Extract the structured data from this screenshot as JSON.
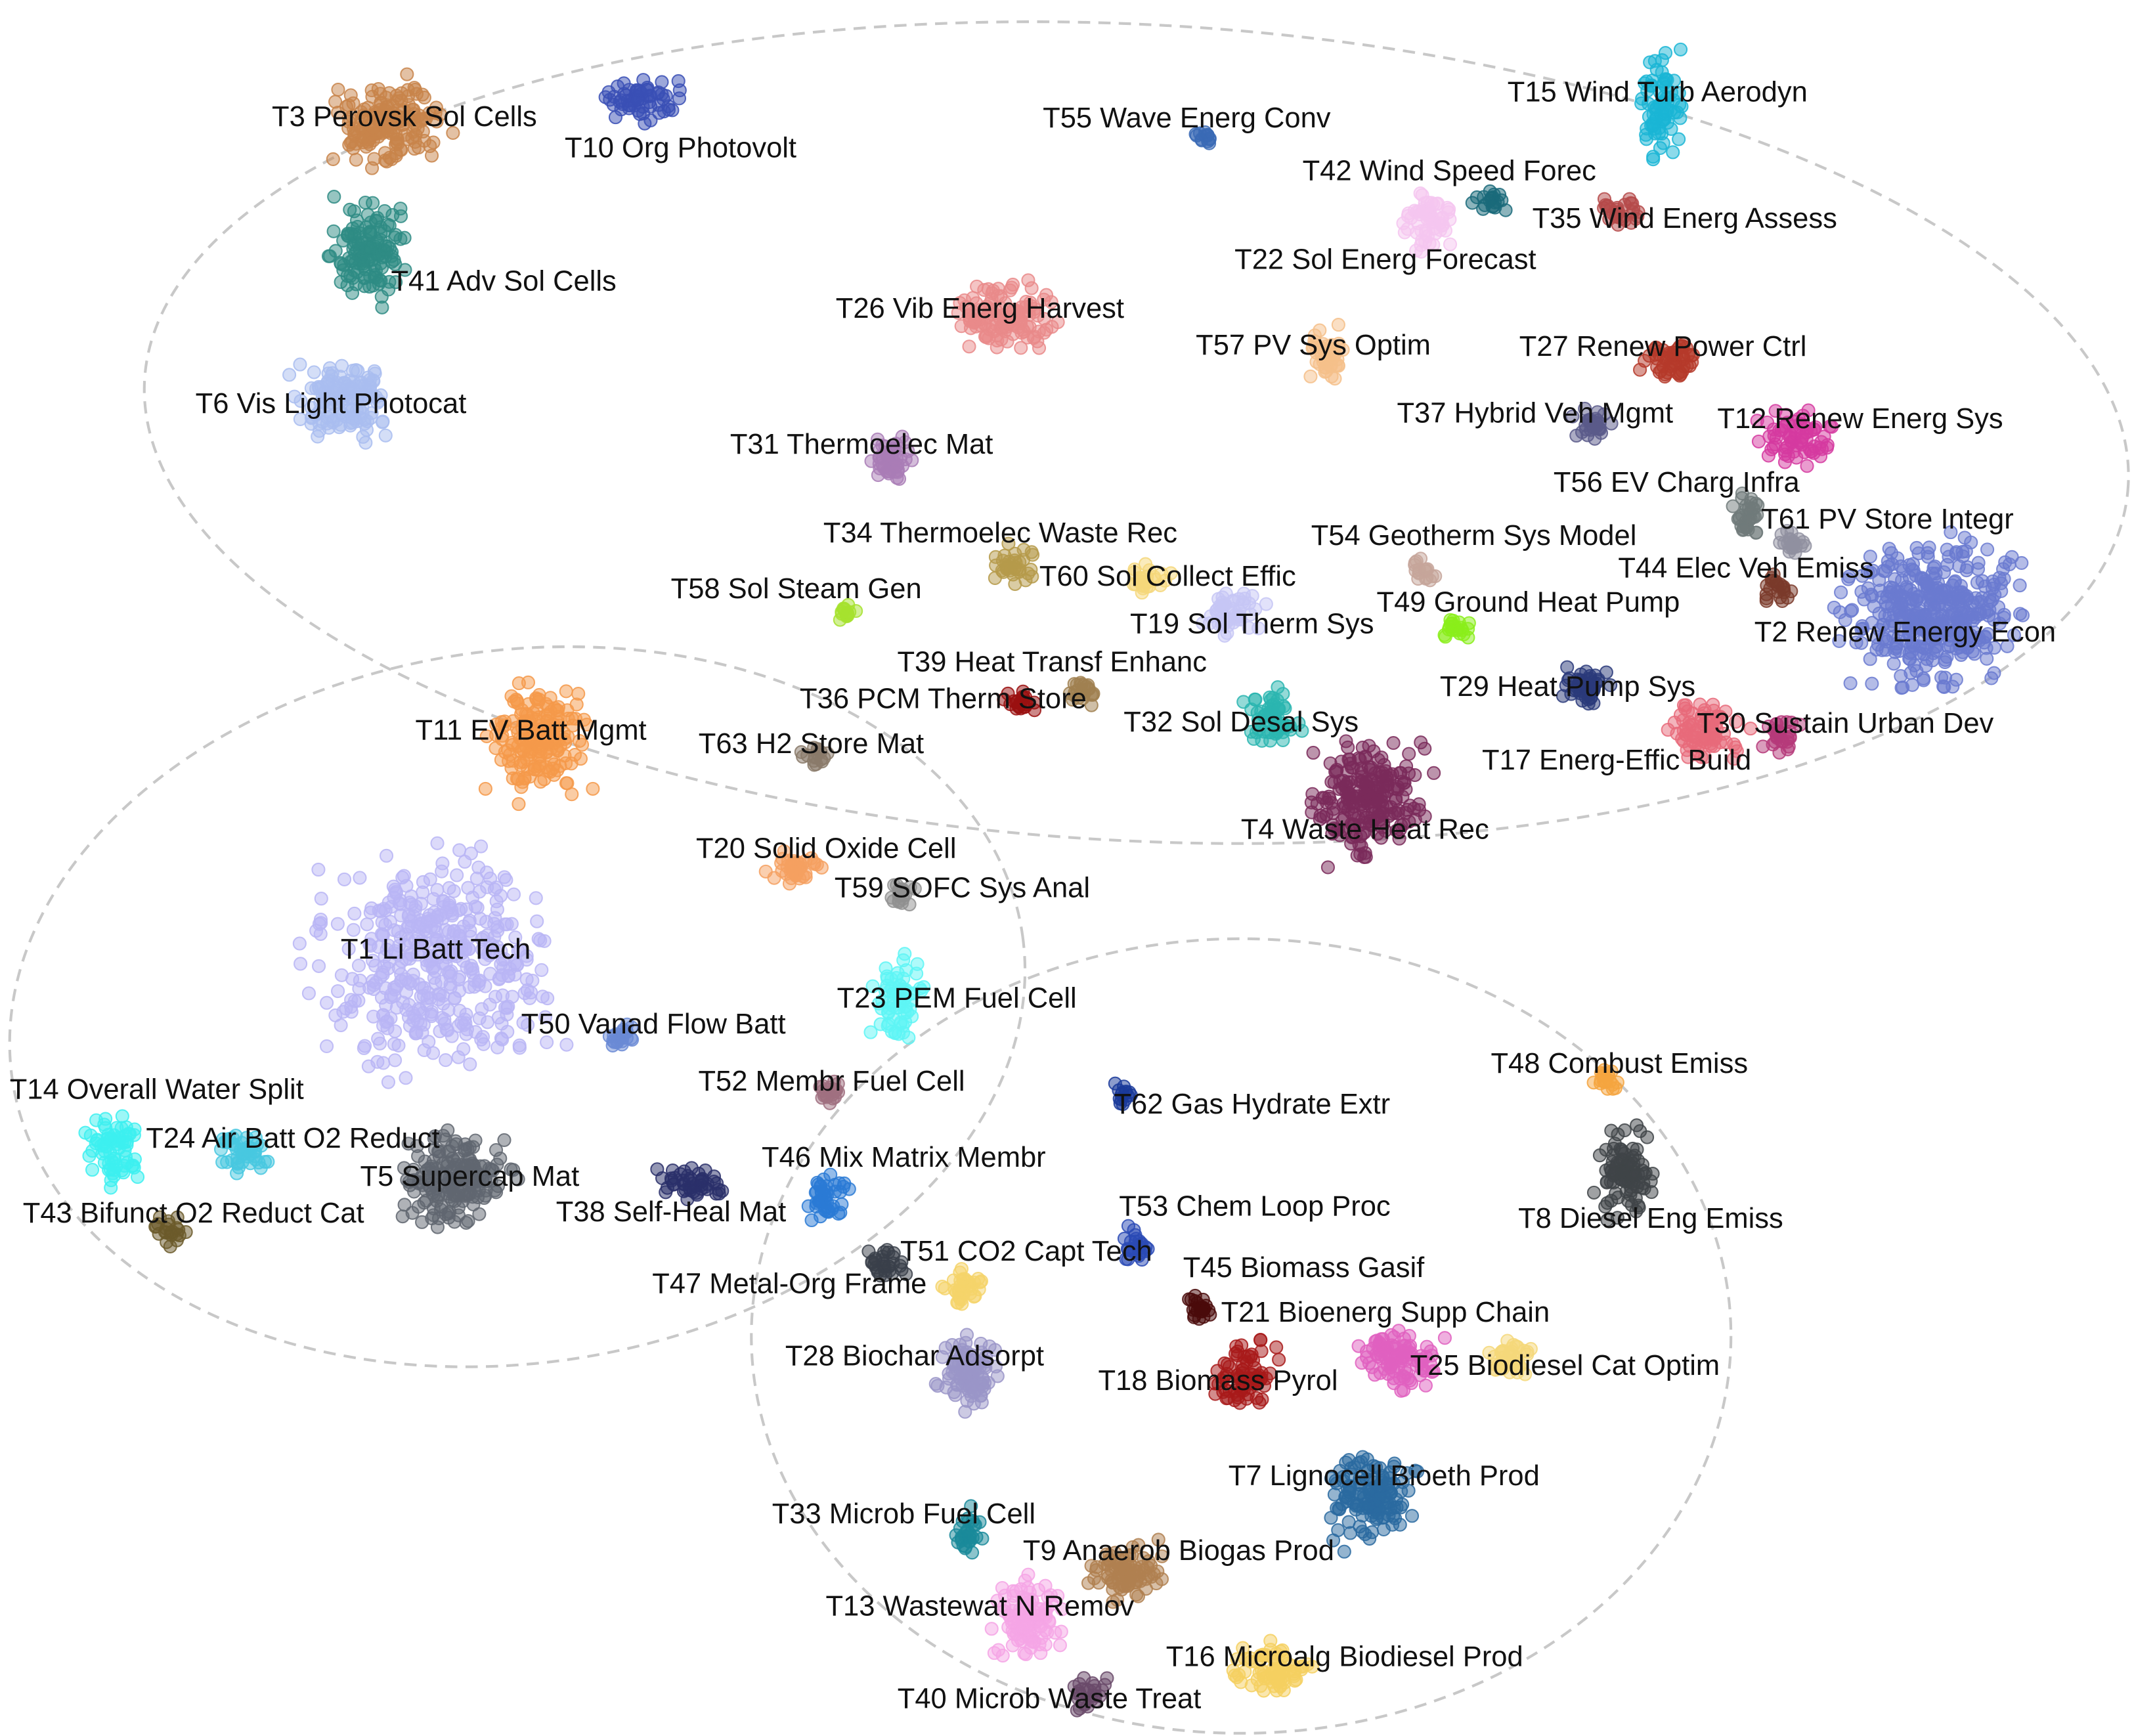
{
  "topics": [
    {
      "label": "T3 Perovsk Sol Cells"
    },
    {
      "label": "T10 Org Photovolt"
    },
    {
      "label": "T41 Adv Sol Cells"
    },
    {
      "label": "T6 Vis Light Photocat"
    },
    {
      "label": "T26 Vib Energ Harvest"
    },
    {
      "label": "T31 Thermoelec Mat"
    },
    {
      "label": "T34 Thermoelec Waste Rec"
    },
    {
      "label": "T58 Sol Steam Gen"
    },
    {
      "label": "T60 Sol Collect Effic"
    },
    {
      "label": "T19 Sol Therm Sys"
    },
    {
      "label": "T39 Heat Transf Enhanc"
    },
    {
      "label": "T36 PCM Therm Store"
    },
    {
      "label": "T63 H2 Store Mat"
    },
    {
      "label": "T11 EV Batt Mgmt"
    },
    {
      "label": "T20 Solid Oxide Cell"
    },
    {
      "label": "T59 SOFC Sys Anal"
    },
    {
      "label": "T1 Li Batt Tech"
    },
    {
      "label": "T50 Vanad Flow Batt"
    },
    {
      "label": "T23 PEM Fuel Cell"
    },
    {
      "label": "T52 Membr Fuel Cell"
    },
    {
      "label": "T14 Overall Water Split"
    },
    {
      "label": "T24 Air Batt O2 Reduct"
    },
    {
      "label": "T5 Supercap Mat"
    },
    {
      "label": "T43 Bifunct O2 Reduct Cat"
    },
    {
      "label": "T38 Self-Heal Mat"
    },
    {
      "label": "T46 Mix Matrix Membr"
    },
    {
      "label": "T47 Metal-Org Frame"
    },
    {
      "label": "T51 CO2 Capt Tech"
    },
    {
      "label": "T28 Biochar Adsorpt"
    },
    {
      "label": "T55 Wave Energ Conv"
    },
    {
      "label": "T15 Wind Turb Aerodyn"
    },
    {
      "label": "T42 Wind Speed Forec"
    },
    {
      "label": "T35 Wind Energ Assess"
    },
    {
      "label": "T22 Sol Energ Forecast"
    },
    {
      "label": "T57 PV Sys Optim"
    },
    {
      "label": "T27 Renew Power Ctrl"
    },
    {
      "label": "T37 Hybrid Veh Mgmt"
    },
    {
      "label": "T12 Renew Energ Sys"
    },
    {
      "label": "T56 EV Charg Infra"
    },
    {
      "label": "T61 PV Store Integr"
    },
    {
      "label": "T44 Elec Veh Emiss"
    },
    {
      "label": "T2 Renew Energy Econ"
    },
    {
      "label": "T54 Geotherm Sys Model"
    },
    {
      "label": "T49 Ground Heat Pump"
    },
    {
      "label": "T29 Heat Pump Sys"
    },
    {
      "label": "T30 Sustain Urban Dev"
    },
    {
      "label": "T17 Energ-Effic Build"
    },
    {
      "label": "T32 Sol Desal Sys"
    },
    {
      "label": "T4 Waste Heat Rec"
    },
    {
      "label": "T62 Gas Hydrate Extr"
    },
    {
      "label": "T48 Combust Emiss"
    },
    {
      "label": "T8 Diesel Eng Emiss"
    },
    {
      "label": "T53 Chem Loop Proc"
    },
    {
      "label": "T45 Biomass Gasif"
    },
    {
      "label": "T21 Bioenerg Supp Chain"
    },
    {
      "label": "T25 Biodiesel Cat Optim"
    },
    {
      "label": "T18 Biomass Pyrol"
    },
    {
      "label": "T7 Lignocell Bioeth Prod"
    },
    {
      "label": "T33 Microb Fuel Cell"
    },
    {
      "label": "T9 Anaerob Biogas Prod"
    },
    {
      "label": "T13 Wastewat N Remov"
    },
    {
      "label": "T16 Microalg Biodiesel Prod"
    },
    {
      "label": "T40 Microb Waste Treat"
    }
  ]
}
